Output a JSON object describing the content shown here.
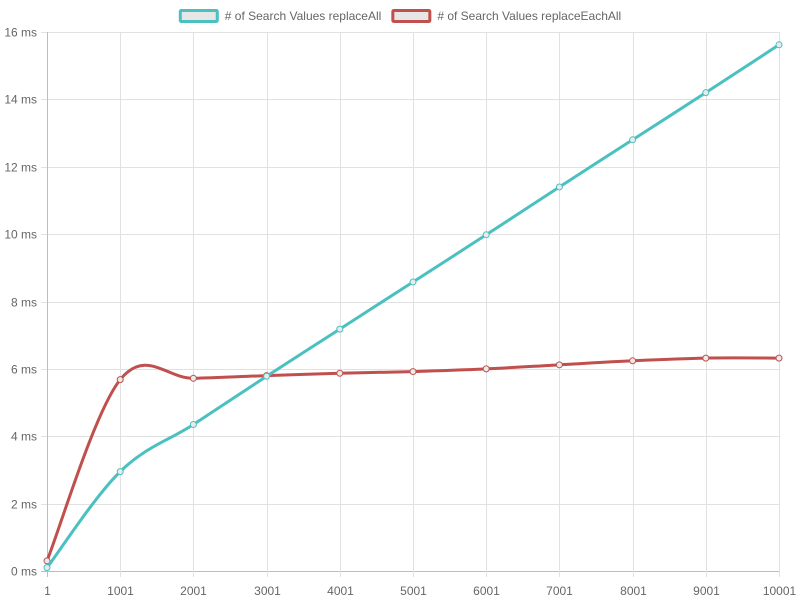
{
  "chart_data": {
    "type": "line",
    "x": [
      1,
      1001,
      2001,
      3001,
      4001,
      5001,
      6001,
      7001,
      8001,
      9001,
      10001
    ],
    "x_tick_labels": [
      "1",
      "1001",
      "2001",
      "3001",
      "4001",
      "5001",
      "6001",
      "7001",
      "8001",
      "9001",
      "10001"
    ],
    "y_ticks": [
      0,
      2,
      4,
      6,
      8,
      10,
      12,
      14,
      16
    ],
    "y_tick_labels": [
      "0 ms",
      "2 ms",
      "4 ms",
      "6 ms",
      "8 ms",
      "10 ms",
      "12 ms",
      "14 ms",
      "16 ms"
    ],
    "ylim": [
      0,
      16
    ],
    "grid": true,
    "legend_position": "top-center",
    "series": [
      {
        "name": "# of Search Values replaceAll",
        "color": "#4bc0c0",
        "values": [
          0.1,
          2.95,
          4.35,
          5.78,
          7.18,
          8.58,
          9.98,
          11.4,
          12.8,
          14.2,
          15.62
        ]
      },
      {
        "name": "# of Search Values replaceEachAll",
        "color": "#c0504d",
        "values": [
          0.3,
          5.68,
          5.72,
          5.8,
          5.87,
          5.92,
          6.0,
          6.12,
          6.24,
          6.32,
          6.32
        ]
      }
    ]
  }
}
